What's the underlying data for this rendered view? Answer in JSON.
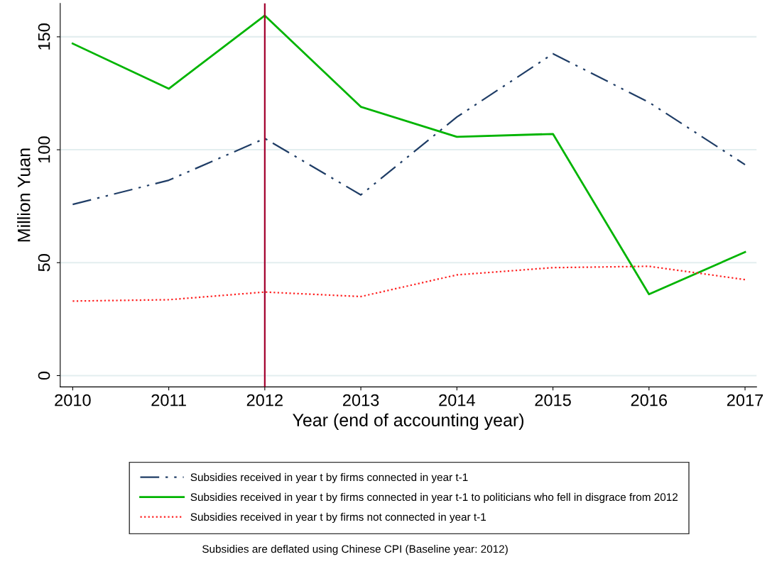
{
  "chart_data": {
    "type": "line",
    "x": [
      2010,
      2011,
      2012,
      2013,
      2014,
      2015,
      2016,
      2017
    ],
    "series": [
      {
        "name": "Subsidies received in year t by firms connected in year t-1",
        "color": "#1f3d66",
        "line_style": "dashdot",
        "values": [
          75.8,
          86.5,
          105,
          80,
          114.5,
          142.5,
          121,
          93.4
        ]
      },
      {
        "name": "Subsidies received in year t by firms connected in year t-1 to politicians who fell in disgrace from 2012",
        "color": "#00b400",
        "line_style": "solid",
        "values": [
          147,
          127,
          159.4,
          119,
          105.7,
          107,
          36,
          54.7
        ]
      },
      {
        "name": "Subsidies received in year t by firms not connected in year t-1",
        "color": "#ff2020",
        "line_style": "dotted",
        "values": [
          33,
          33.6,
          37,
          35,
          44.6,
          47.8,
          48.4,
          42.5
        ]
      }
    ],
    "xlabel": "Year (end of accounting year)",
    "ylabel": "Million Yuan",
    "xlim": [
      2009.87,
      2017.12
    ],
    "ylim": [
      -5,
      164.8
    ],
    "xticks": [
      2010,
      2011,
      2012,
      2013,
      2014,
      2015,
      2016,
      2017
    ],
    "yticks": [
      0,
      50,
      100,
      150
    ],
    "grid": "y",
    "legend": "bottom",
    "ref_lines": [
      {
        "axis": "x",
        "value": 2012,
        "color": "#a3002e",
        "line_style": "solid"
      }
    ],
    "annotations": [
      "Subsidies are deflated using Chinese CPI (Baseline year: 2012)"
    ]
  }
}
